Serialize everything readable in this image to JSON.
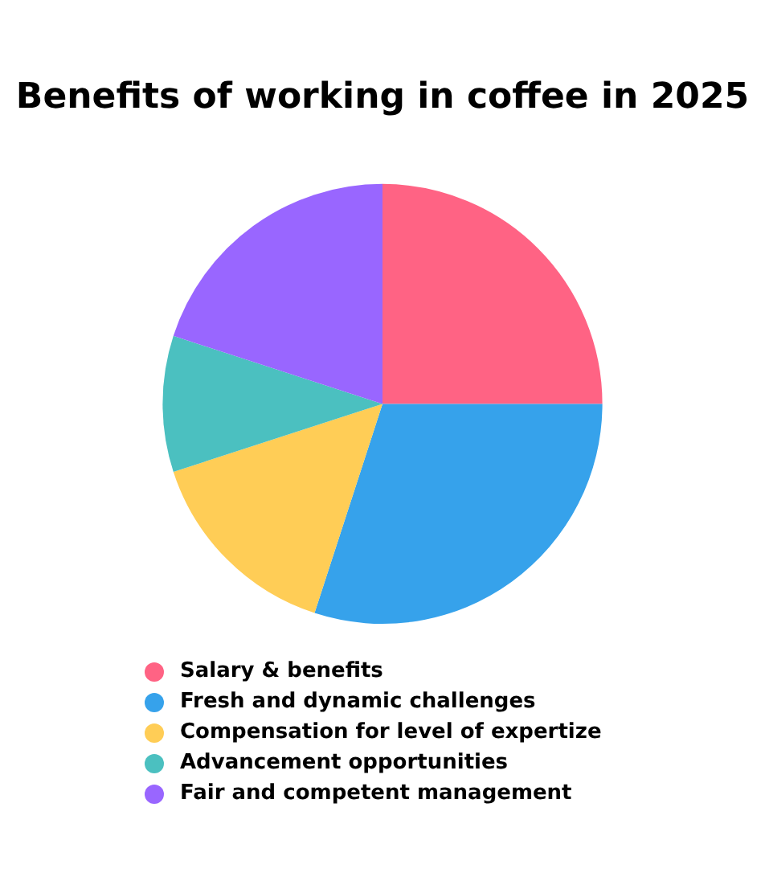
{
  "chart_data": {
    "type": "pie",
    "title": "Benefits of working in coffee in 2025",
    "categories": [
      "Salary & benefits",
      "Fresh and dynamic challenges",
      "Compensation for level of expertize",
      "Advancement opportunities",
      "Fair and competent management"
    ],
    "values": [
      25,
      30,
      15,
      10,
      20
    ],
    "colors": [
      "#ff6384",
      "#36a2eb",
      "#ffcd56",
      "#4bc0c0",
      "#9966ff"
    ],
    "legend": "bottom"
  }
}
